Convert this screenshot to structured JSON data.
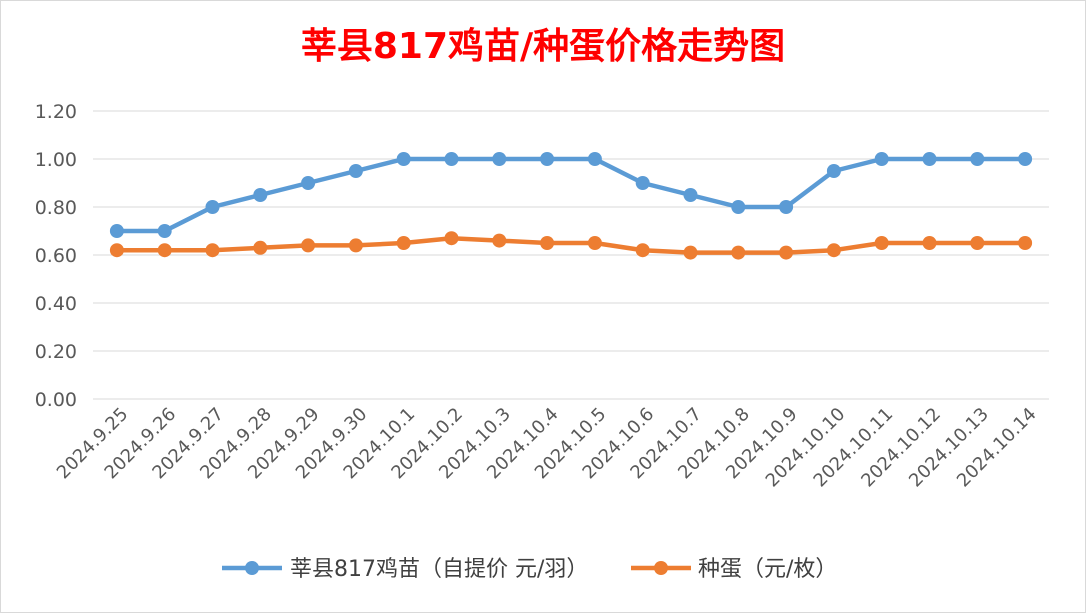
{
  "chart_data": {
    "type": "line",
    "title": "莘县817鸡苗/种蛋价格走势图",
    "title_color": "#ff0000",
    "categories": [
      "2024.9.25",
      "2024.9.26",
      "2024.9.27",
      "2024.9.28",
      "2024.9.29",
      "2024.9.30",
      "2024.10.1",
      "2024.10.2",
      "2024.10.3",
      "2024.10.4",
      "2024.10.5",
      "2024.10.6",
      "2024.10.7",
      "2024.10.8",
      "2024.10.9",
      "2024.10.10",
      "2024.10.11",
      "2024.10.12",
      "2024.10.13",
      "2024.10.14"
    ],
    "series": [
      {
        "name": "莘县817鸡苗（自提价 元/羽）",
        "color": "#5b9bd5",
        "values": [
          0.7,
          0.7,
          0.8,
          0.85,
          0.9,
          0.95,
          1.0,
          1.0,
          1.0,
          1.0,
          1.0,
          0.9,
          0.85,
          0.8,
          0.8,
          0.95,
          1.0,
          1.0,
          1.0,
          1.0
        ]
      },
      {
        "name": "种蛋（元/枚）",
        "color": "#ed7d31",
        "values": [
          0.62,
          0.62,
          0.62,
          0.63,
          0.64,
          0.64,
          0.65,
          0.67,
          0.66,
          0.65,
          0.65,
          0.62,
          0.61,
          0.61,
          0.61,
          0.62,
          0.65,
          0.65,
          0.65,
          0.65
        ]
      }
    ],
    "y_ticks": [
      "0.00",
      "0.20",
      "0.40",
      "0.60",
      "0.80",
      "1.00",
      "1.20"
    ],
    "ylim": [
      0,
      1.2
    ],
    "grid": true,
    "legend_position": "bottom"
  }
}
